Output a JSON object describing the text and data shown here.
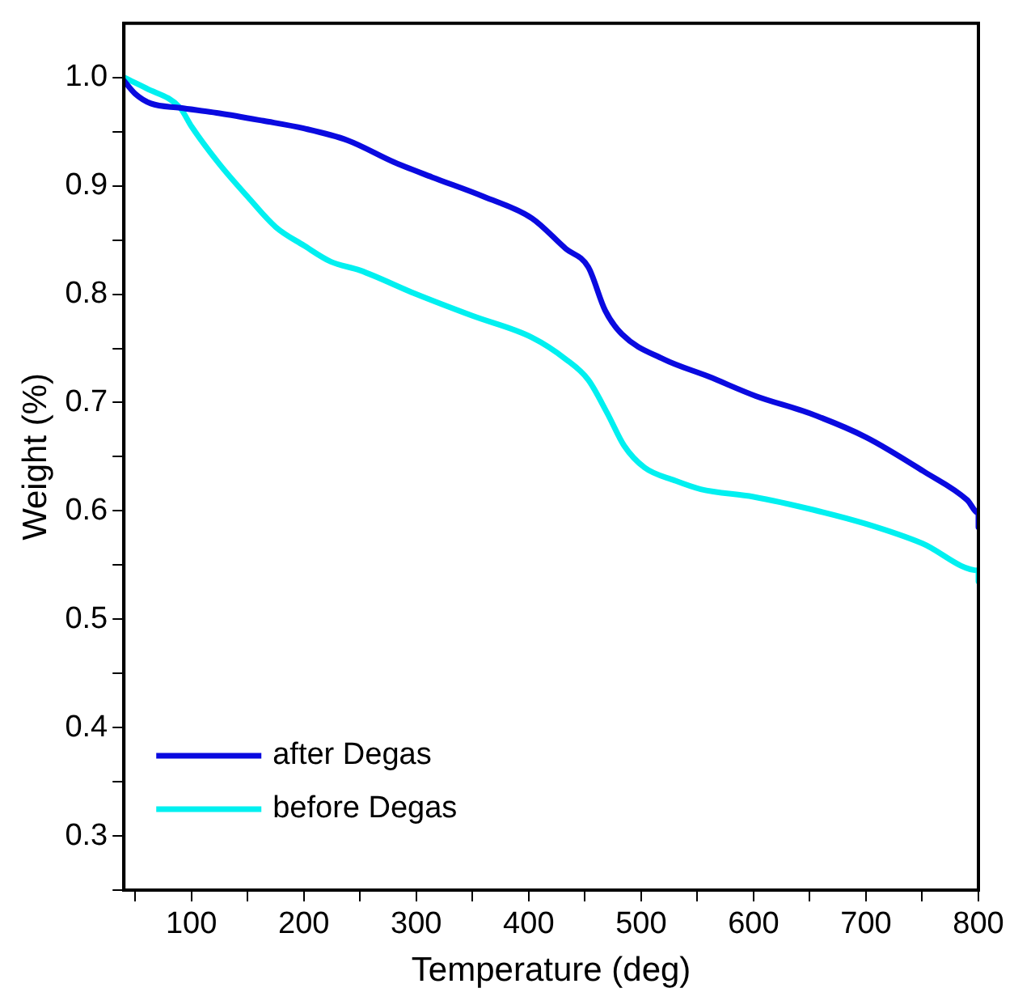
{
  "chart_data": {
    "type": "line",
    "xlabel": "Temperature (deg)",
    "ylabel": "Weight (%)",
    "xlim": [
      40,
      800
    ],
    "ylim": [
      0.25,
      1.05
    ],
    "xticks": [
      {
        "value": 50,
        "label": null
      },
      100,
      {
        "value": 150,
        "label": null
      },
      200,
      {
        "value": 250,
        "label": null
      },
      300,
      {
        "value": 350,
        "label": null
      },
      400,
      {
        "value": 450,
        "label": null
      },
      500,
      {
        "value": 550,
        "label": null
      },
      600,
      {
        "value": 650,
        "label": null
      },
      700,
      {
        "value": 750,
        "label": null
      },
      800
    ],
    "yticks": [
      {
        "value": 0.25,
        "label": null
      },
      {
        "value": 0.3,
        "label": "0.3"
      },
      {
        "value": 0.35,
        "label": null
      },
      {
        "value": 0.4,
        "label": "0.4"
      },
      {
        "value": 0.45,
        "label": null
      },
      {
        "value": 0.5,
        "label": "0.5"
      },
      {
        "value": 0.55,
        "label": null
      },
      {
        "value": 0.6,
        "label": "0.6"
      },
      {
        "value": 0.65,
        "label": null
      },
      {
        "value": 0.7,
        "label": "0.7"
      },
      {
        "value": 0.75,
        "label": null
      },
      {
        "value": 0.8,
        "label": "0.8"
      },
      {
        "value": 0.85,
        "label": null
      },
      {
        "value": 0.9,
        "label": "0.9"
      },
      {
        "value": 0.95,
        "label": null
      },
      {
        "value": 1.0,
        "label": "1.0"
      }
    ],
    "grid": false,
    "legend": "bottom left",
    "marker": "none",
    "line_style": "solid",
    "series": [
      {
        "name": "after Degas",
        "color": "#0a0ae0",
        "x": [
          40,
          50,
          64,
          90,
          125,
          164,
          200,
          239,
          280,
          314,
          360,
          403,
          433,
          453,
          468,
          483,
          520,
          560,
          602,
          650,
          700,
          752,
          790,
          800,
          800
        ],
        "values": [
          0.997,
          0.985,
          0.976,
          0.972,
          0.967,
          0.96,
          0.953,
          0.942,
          0.922,
          0.908,
          0.89,
          0.87,
          0.842,
          0.825,
          0.785,
          0.763,
          0.74,
          0.724,
          0.706,
          0.69,
          0.668,
          0.636,
          0.61,
          0.598,
          0.585
        ]
      },
      {
        "name": "before Degas",
        "color": "#00f0f0",
        "x": [
          40,
          60,
          90,
          100,
          125,
          150,
          175,
          200,
          224,
          250,
          300,
          350,
          403,
          433,
          453,
          470,
          485,
          503,
          530,
          553,
          600,
          653,
          700,
          750,
          800,
          800
        ],
        "values": [
          1.0,
          0.99,
          0.972,
          0.955,
          0.92,
          0.89,
          0.862,
          0.845,
          0.83,
          0.822,
          0.8,
          0.78,
          0.76,
          0.74,
          0.721,
          0.69,
          0.66,
          0.64,
          0.628,
          0.62,
          0.613,
          0.601,
          0.588,
          0.57,
          0.545,
          0.535
        ]
      }
    ]
  }
}
